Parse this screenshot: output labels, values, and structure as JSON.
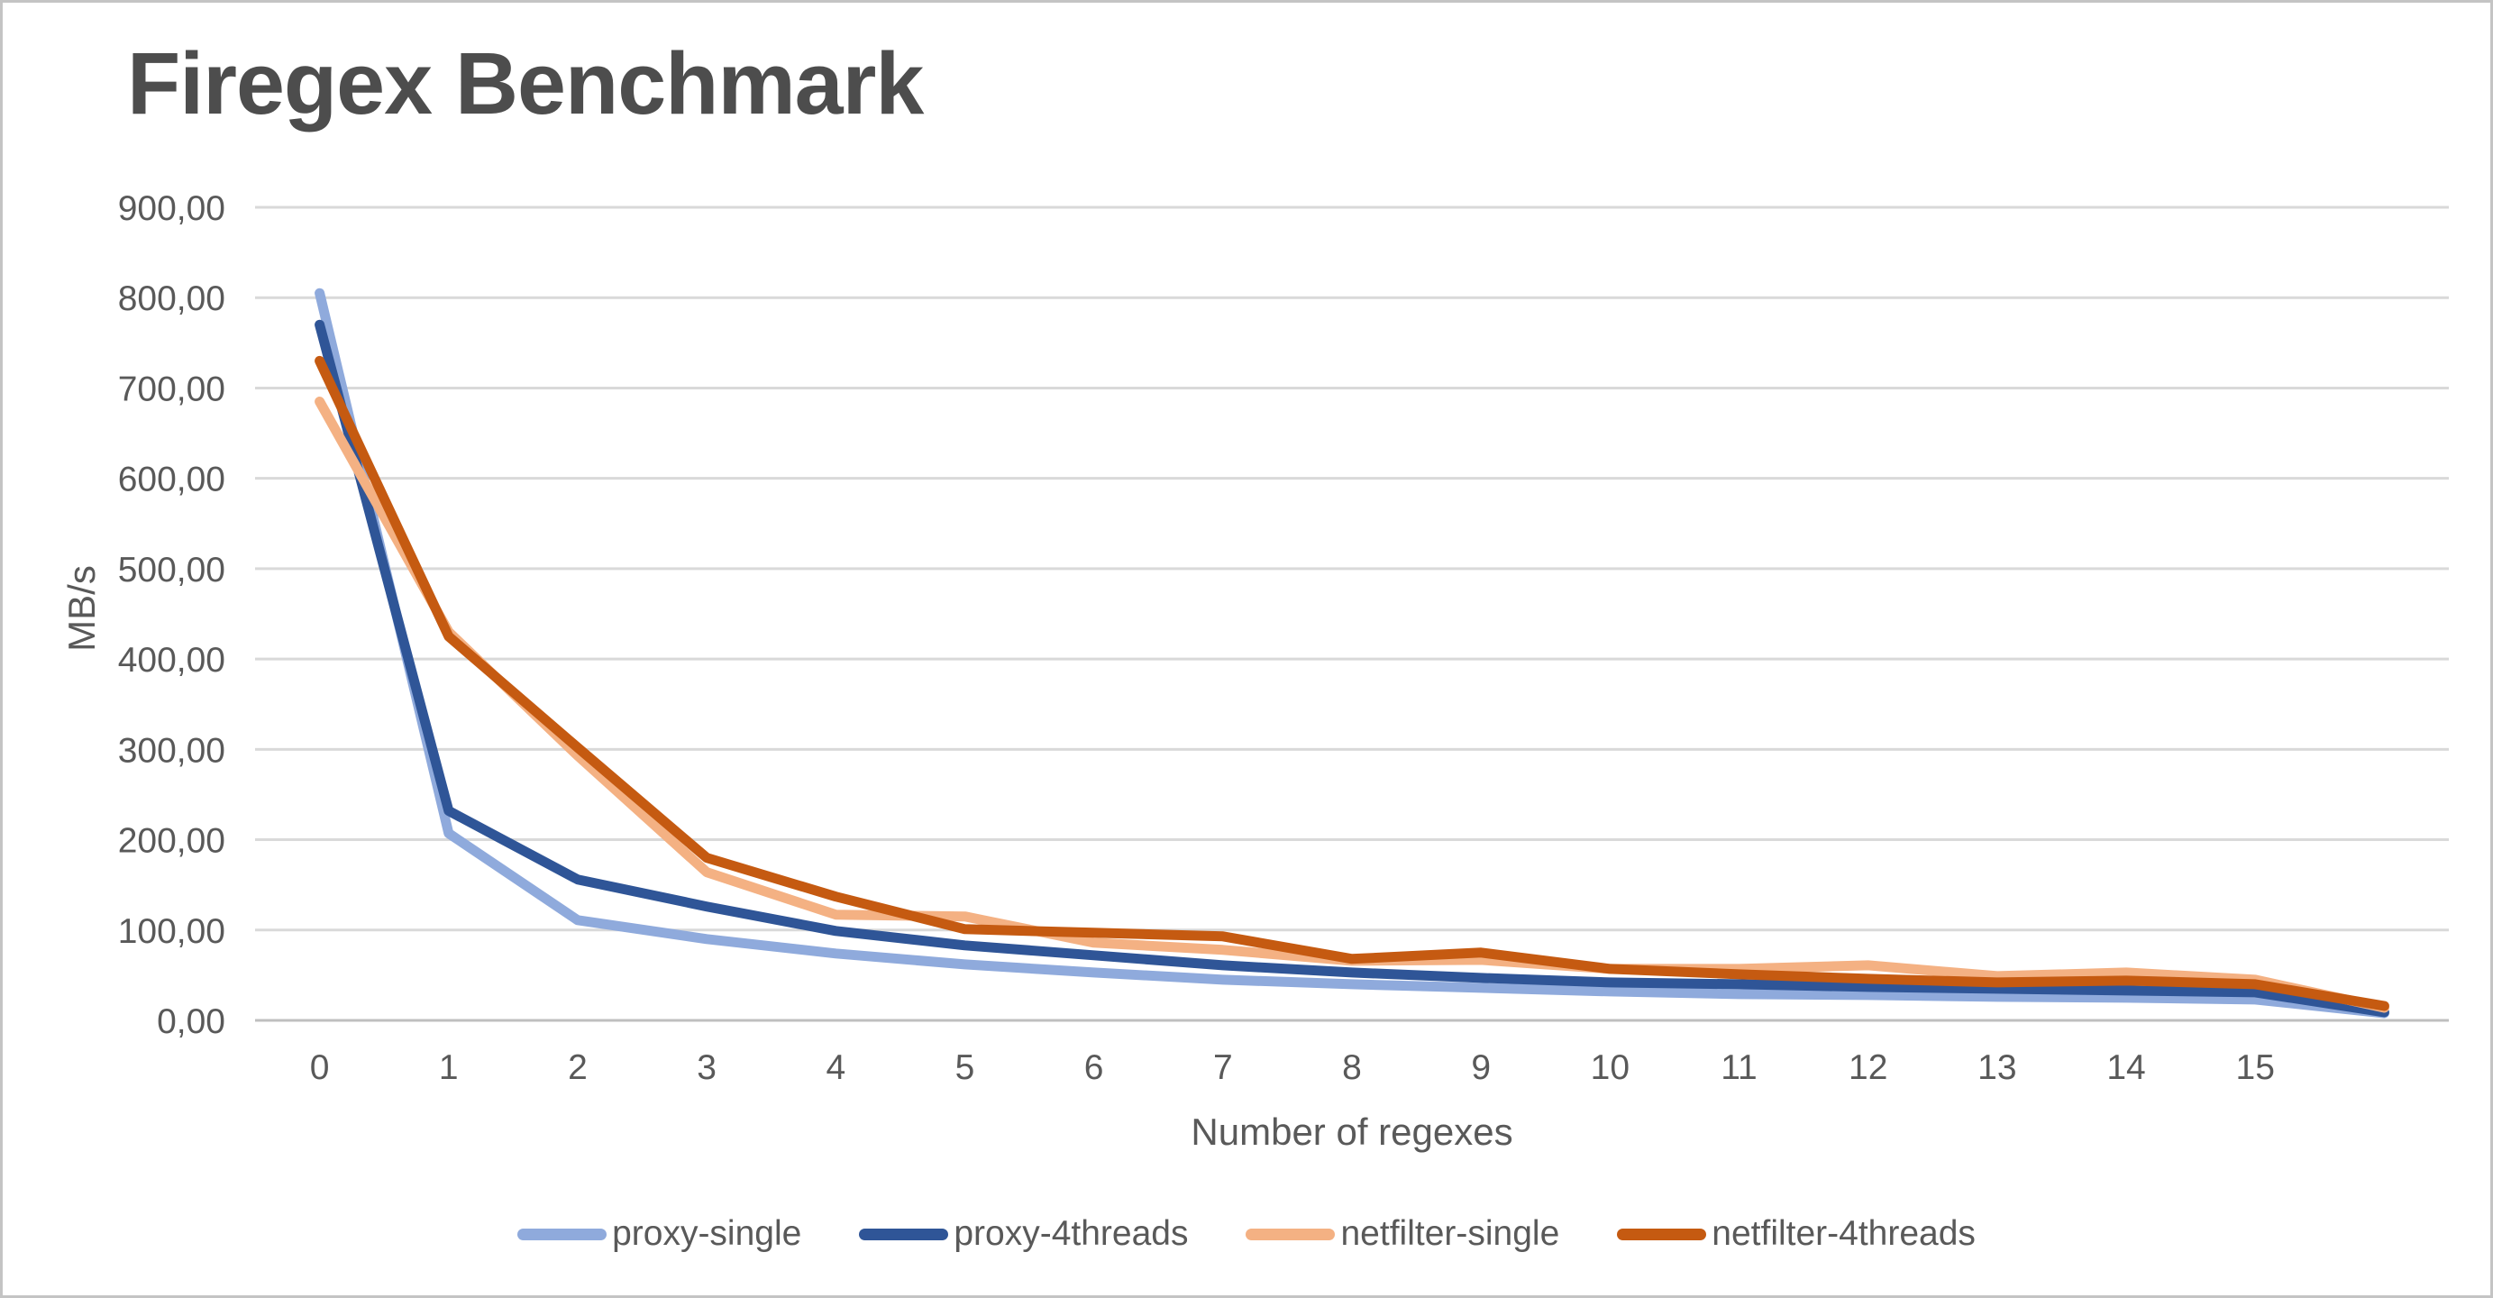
{
  "title": "Firegex Benchmark",
  "y_axis": {
    "label": "MB/s",
    "min": 0,
    "max": 900,
    "step": 100,
    "tick_labels": [
      "0,00",
      "100,00",
      "200,00",
      "300,00",
      "400,00",
      "500,00",
      "600,00",
      "700,00",
      "800,00",
      "900,00"
    ]
  },
  "x_axis": {
    "label": "Number of regexes",
    "tick_labels": [
      "0",
      "1",
      "2",
      "3",
      "4",
      "5",
      "6",
      "7",
      "8",
      "9",
      "10",
      "11",
      "12",
      "13",
      "14",
      "15",
      ""
    ]
  },
  "colors": {
    "gridline": "#d9d9d9",
    "axis_line": "#bfbfbf",
    "tick_text": "#595959",
    "title_text": "#4d4d4d"
  },
  "chart_data": {
    "type": "line",
    "title": "Firegex Benchmark",
    "xlabel": "Number of regexes",
    "ylabel": "MB/s",
    "ylim": [
      0,
      900
    ],
    "grid": true,
    "legend_position": "bottom",
    "x": [
      0,
      1,
      2,
      3,
      4,
      5,
      6,
      7,
      8,
      9,
      10,
      11,
      12,
      13,
      14,
      15,
      16
    ],
    "categories": [
      "0",
      "1",
      "2",
      "3",
      "4",
      "5",
      "6",
      "7",
      "8",
      "9",
      "10",
      "11",
      "12",
      "13",
      "14",
      "15",
      ""
    ],
    "series": [
      {
        "name": "proxy-single",
        "color": "#8FAADC",
        "values": [
          805,
          207,
          111,
          90,
          74,
          62,
          53,
          45,
          40,
          36,
          32,
          29,
          28,
          26,
          25,
          23,
          8
        ]
      },
      {
        "name": "proxy-4threads",
        "color": "#2F5597",
        "values": [
          770,
          232,
          156,
          126,
          99,
          83,
          72,
          61,
          53,
          47,
          42,
          40,
          37,
          35,
          33,
          31,
          9
        ]
      },
      {
        "name": "netfilter-single",
        "color": "#F4B183",
        "values": [
          685,
          430,
          293,
          164,
          117,
          115,
          86,
          78,
          66,
          67,
          57,
          57,
          61,
          49,
          53,
          45,
          14
        ]
      },
      {
        "name": "netfilter-4threads",
        "color": "#C55A11",
        "values": [
          730,
          425,
          302,
          180,
          137,
          101,
          97,
          93,
          68,
          75,
          57,
          51,
          46,
          42,
          44,
          40,
          16
        ]
      }
    ]
  }
}
